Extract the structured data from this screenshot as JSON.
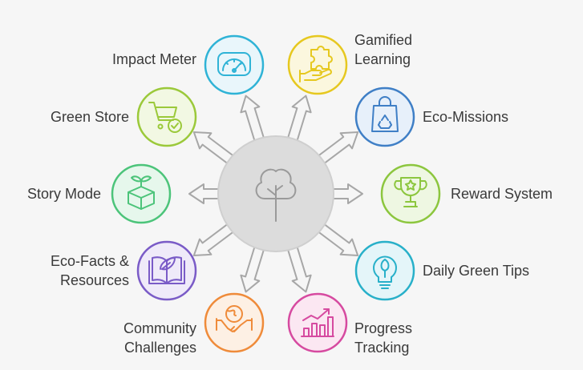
{
  "center": {
    "icon": "tree-icon"
  },
  "features": [
    {
      "id": "impact-meter",
      "label": "Impact Meter",
      "icon": "gauge-icon",
      "color": "#2fb3d6"
    },
    {
      "id": "gamified-learning",
      "label_lines": [
        "Gamified",
        "Learning"
      ],
      "icon": "puzzle-hand-icon",
      "color": "#e6c81f"
    },
    {
      "id": "green-store",
      "label": "Green Store",
      "icon": "cart-check-icon",
      "color": "#9bc93a"
    },
    {
      "id": "eco-missions",
      "label": "Eco-Missions",
      "icon": "recycle-bag-icon",
      "color": "#3f7fc6"
    },
    {
      "id": "story-mode",
      "label": "Story Mode",
      "icon": "sprout-box-icon",
      "color": "#4cc47a"
    },
    {
      "id": "reward-system",
      "label": "Reward System",
      "icon": "trophy-icon",
      "color": "#8cc63e"
    },
    {
      "id": "eco-facts",
      "label_lines": [
        "Eco-Facts &",
        "Resources"
      ],
      "icon": "leaf-book-icon",
      "color": "#7a5bc7"
    },
    {
      "id": "daily-green-tips",
      "label": "Daily Green Tips",
      "icon": "leaf-bulb-icon",
      "color": "#28b0c9"
    },
    {
      "id": "community-challenges",
      "label_lines": [
        "Community",
        "Challenges"
      ],
      "icon": "globe-handshake-icon",
      "color": "#ef8b3a"
    },
    {
      "id": "progress-tracking",
      "label_lines": [
        "Progress",
        "Tracking"
      ],
      "icon": "growth-chart-icon",
      "color": "#d64aa0"
    }
  ]
}
